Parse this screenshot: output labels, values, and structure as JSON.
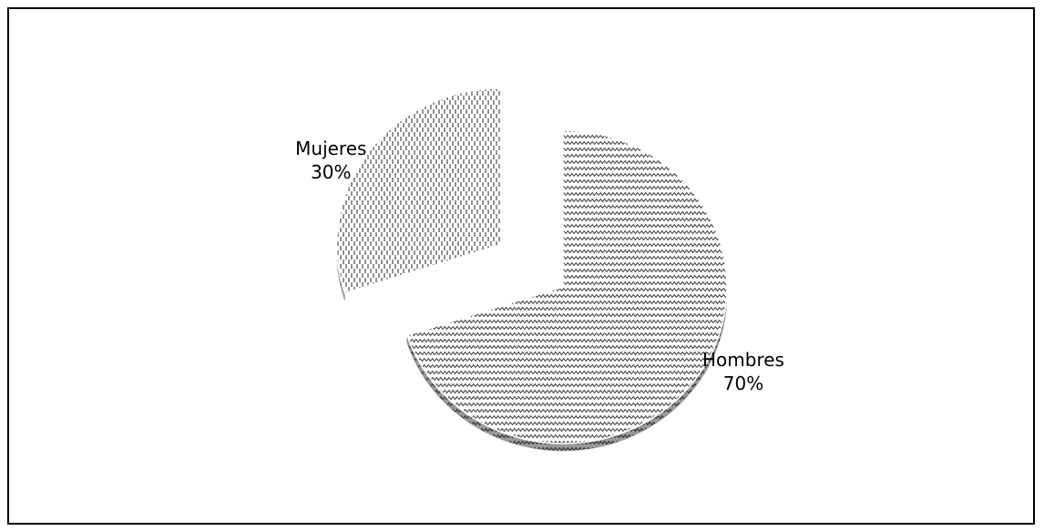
{
  "chart_data": {
    "type": "pie",
    "title": "",
    "style": "3d-exploded",
    "fill_patterns": [
      "zigzag-hatch",
      "dashed-vertical-hatch"
    ],
    "slices": [
      {
        "label": "Hombres",
        "value": 70,
        "percent_label": "70%",
        "pattern": "zigzag-hatch",
        "exploded": false
      },
      {
        "label": "Mujeres",
        "value": 30,
        "percent_label": "30%",
        "pattern": "dashed-vertical-hatch",
        "exploded": true
      }
    ],
    "legend": "none",
    "colors": {
      "border": "#000000",
      "pattern_ink": "#555555",
      "background": "#ffffff"
    }
  }
}
